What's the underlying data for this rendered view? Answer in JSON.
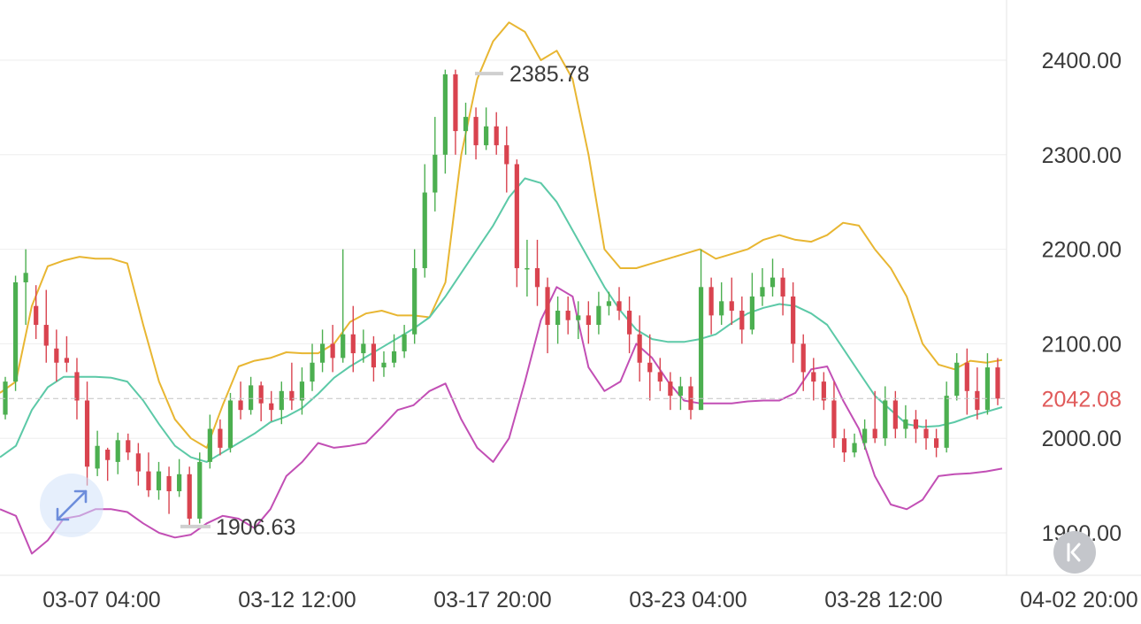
{
  "chart_data": {
    "type": "candlestick",
    "title": "",
    "y_ticks": [
      "2400.00",
      "2300.00",
      "2200.00",
      "2100.00",
      "2000.00",
      "1900.00"
    ],
    "y_tick_values": [
      2400,
      2300,
      2200,
      2100,
      2000,
      1900
    ],
    "ylim": [
      1862,
      2470
    ],
    "x_ticks": [
      "03-07 04:00",
      "03-12 12:00",
      "03-17 20:00",
      "03-23 04:00",
      "03-28 12:00",
      "04-02 20:00"
    ],
    "current_price": {
      "label": "2042.08",
      "value": 2042.08
    },
    "high_marker": {
      "label": "2385.78",
      "value": 2385.78
    },
    "low_marker": {
      "label": "1906.63",
      "value": 1906.63
    },
    "colors": {
      "up": "#4caf50",
      "down": "#d9434f",
      "upper_band": "#e8b632",
      "middle_band": "#5cc9a7",
      "lower_band": "#c24fb5",
      "price_tag": "#e05a5a"
    },
    "bands": {
      "upper": [
        2048,
        2060,
        2140,
        2182,
        2188,
        2192,
        2190,
        2190,
        2185,
        2120,
        2060,
        2020,
        2000,
        1990,
        2035,
        2076,
        2082,
        2085,
        2091,
        2090,
        2090,
        2100,
        2123,
        2132,
        2135,
        2130,
        2130,
        2128,
        2165,
        2300,
        2380,
        2420,
        2440,
        2430,
        2400,
        2410,
        2380,
        2300,
        2200,
        2180,
        2180,
        2185,
        2190,
        2195,
        2200,
        2190,
        2195,
        2200,
        2210,
        2215,
        2210,
        2208,
        2215,
        2228,
        2225,
        2200,
        2180,
        2150,
        2100,
        2078,
        2073,
        2082,
        2080,
        2083
      ],
      "middle": [
        1980,
        1992,
        2030,
        2054,
        2065,
        2065,
        2065,
        2064,
        2060,
        2040,
        2015,
        1992,
        1980,
        1975,
        1985,
        1995,
        2005,
        2017,
        2023,
        2032,
        2047,
        2064,
        2076,
        2086,
        2096,
        2106,
        2116,
        2128,
        2150,
        2175,
        2200,
        2225,
        2255,
        2275,
        2270,
        2250,
        2220,
        2190,
        2160,
        2135,
        2115,
        2105,
        2102,
        2102,
        2105,
        2110,
        2122,
        2132,
        2138,
        2142,
        2140,
        2132,
        2120,
        2095,
        2070,
        2045,
        2030,
        2015,
        2012,
        2013,
        2017,
        2023,
        2028,
        2033
      ],
      "lower": [
        1925,
        1918,
        1878,
        1892,
        1915,
        1918,
        1925,
        1925,
        1922,
        1910,
        1900,
        1895,
        1898,
        1910,
        1918,
        1915,
        1905,
        1925,
        1960,
        1975,
        1995,
        1990,
        1992,
        1995,
        2012,
        2030,
        2035,
        2050,
        2058,
        2020,
        1990,
        1975,
        2000,
        2060,
        2125,
        2160,
        2150,
        2075,
        2050,
        2060,
        2100,
        2085,
        2060,
        2040,
        2037,
        2037,
        2037,
        2039,
        2040,
        2040,
        2048,
        2073,
        2076,
        2040,
        2010,
        1960,
        1930,
        1925,
        1935,
        1960,
        1962,
        1963,
        1965,
        1968
      ],
      "x_start": 0.0,
      "x_end": 1133.0
    },
    "candles": [
      [
        2025,
        2060,
        2065,
        2020
      ],
      [
        2060,
        2165,
        2172,
        2050
      ],
      [
        2165,
        2175,
        2200,
        2120
      ],
      [
        2140,
        2120,
        2162,
        2105
      ],
      [
        2120,
        2098,
        2157,
        2080
      ],
      [
        2095,
        2080,
        2115,
        2060
      ],
      [
        2085,
        2080,
        2108,
        2070
      ],
      [
        2070,
        2040,
        2085,
        2020
      ],
      [
        2040,
        1970,
        2060,
        1950
      ],
      [
        1968,
        1992,
        2008,
        1960
      ],
      [
        1988,
        1977,
        1990,
        1955
      ],
      [
        1975,
        1998,
        2006,
        1962
      ],
      [
        1998,
        1985,
        2005,
        1977
      ],
      [
        1984,
        1965,
        1995,
        1950
      ],
      [
        1965,
        1945,
        1985,
        1938
      ],
      [
        1945,
        1965,
        1975,
        1935
      ],
      [
        1960,
        1944,
        1970,
        1920
      ],
      [
        1944,
        1962,
        1978,
        1938
      ],
      [
        1962,
        1915,
        1970,
        1906
      ],
      [
        1915,
        1975,
        1985,
        1910
      ],
      [
        1975,
        2010,
        2025,
        1968
      ],
      [
        2010,
        1990,
        2020,
        1982
      ],
      [
        1990,
        2040,
        2048,
        1985
      ],
      [
        2040,
        2030,
        2060,
        2020
      ],
      [
        2030,
        2056,
        2065,
        2025
      ],
      [
        2056,
        2037,
        2060,
        2018
      ],
      [
        2037,
        2030,
        2050,
        2018
      ],
      [
        2030,
        2050,
        2060,
        2015
      ],
      [
        2050,
        2040,
        2080,
        2030
      ],
      [
        2040,
        2060,
        2075,
        2025
      ],
      [
        2060,
        2080,
        2100,
        2050
      ],
      [
        2080,
        2100,
        2115,
        2070
      ],
      [
        2100,
        2085,
        2120,
        2070
      ],
      [
        2085,
        2110,
        2200,
        2080
      ],
      [
        2110,
        2090,
        2140,
        2070
      ],
      [
        2090,
        2100,
        2115,
        2080
      ],
      [
        2100,
        2075,
        2108,
        2060
      ],
      [
        2075,
        2080,
        2092,
        2065
      ],
      [
        2080,
        2092,
        2110,
        2075
      ],
      [
        2092,
        2110,
        2120,
        2085
      ],
      [
        2110,
        2180,
        2200,
        2100
      ],
      [
        2180,
        2260,
        2290,
        2170
      ],
      [
        2260,
        2300,
        2340,
        2240
      ],
      [
        2300,
        2385,
        2390,
        2280
      ],
      [
        2385,
        2325,
        2390,
        2300
      ],
      [
        2325,
        2340,
        2355,
        2300
      ],
      [
        2340,
        2310,
        2350,
        2295
      ],
      [
        2310,
        2330,
        2350,
        2305
      ],
      [
        2330,
        2310,
        2345,
        2300
      ],
      [
        2310,
        2290,
        2330,
        2260
      ],
      [
        2290,
        2180,
        2295,
        2160
      ],
      [
        2180,
        2180,
        2210,
        2150
      ],
      [
        2180,
        2160,
        2210,
        2140
      ],
      [
        2160,
        2120,
        2170,
        2090
      ],
      [
        2120,
        2135,
        2150,
        2100
      ],
      [
        2135,
        2125,
        2150,
        2110
      ],
      [
        2125,
        2130,
        2145,
        2105
      ],
      [
        2130,
        2120,
        2145,
        2100
      ],
      [
        2120,
        2140,
        2155,
        2110
      ],
      [
        2140,
        2145,
        2155,
        2130
      ],
      [
        2145,
        2135,
        2160,
        2125
      ],
      [
        2135,
        2110,
        2150,
        2090
      ],
      [
        2110,
        2080,
        2130,
        2060
      ],
      [
        2080,
        2070,
        2110,
        2040
      ],
      [
        2070,
        2060,
        2085,
        2050
      ],
      [
        2060,
        2045,
        2070,
        2030
      ],
      [
        2045,
        2055,
        2065,
        2030
      ],
      [
        2055,
        2030,
        2065,
        2020
      ],
      [
        2030,
        2160,
        2200,
        2030
      ],
      [
        2160,
        2130,
        2170,
        2110
      ],
      [
        2130,
        2145,
        2165,
        2120
      ],
      [
        2145,
        2135,
        2170,
        2120
      ],
      [
        2135,
        2115,
        2150,
        2100
      ],
      [
        2115,
        2150,
        2175,
        2110
      ],
      [
        2150,
        2160,
        2180,
        2140
      ],
      [
        2160,
        2170,
        2190,
        2150
      ],
      [
        2170,
        2150,
        2180,
        2130
      ],
      [
        2150,
        2100,
        2165,
        2080
      ],
      [
        2100,
        2070,
        2110,
        2050
      ],
      [
        2070,
        2060,
        2085,
        2040
      ],
      [
        2060,
        2040,
        2070,
        2030
      ],
      [
        2040,
        2000,
        2060,
        1990
      ],
      [
        2000,
        1985,
        2010,
        1975
      ],
      [
        1985,
        1995,
        2005,
        1980
      ],
      [
        1995,
        2010,
        2020,
        1988
      ],
      [
        2010,
        2000,
        2050,
        1995
      ],
      [
        2000,
        2040,
        2055,
        1992
      ],
      [
        2040,
        2010,
        2050,
        2000
      ],
      [
        2010,
        2020,
        2035,
        2000
      ],
      [
        2020,
        2010,
        2030,
        1995
      ],
      [
        2010,
        2000,
        2020,
        1988
      ],
      [
        2000,
        1990,
        2010,
        1980
      ],
      [
        1990,
        2045,
        2060,
        1985
      ],
      [
        2045,
        2080,
        2090,
        2040
      ],
      [
        2080,
        2050,
        2095,
        2025
      ],
      [
        2050,
        2030,
        2075,
        2020
      ],
      [
        2030,
        2075,
        2090,
        2025
      ],
      [
        2075,
        2042,
        2085,
        2035
      ]
    ]
  }
}
